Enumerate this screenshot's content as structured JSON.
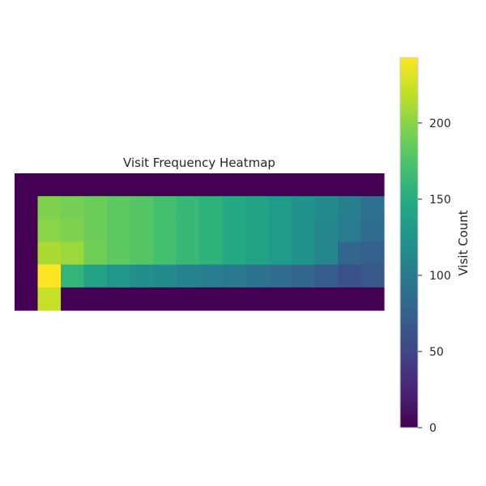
{
  "chart_data": {
    "type": "heatmap",
    "title": "Visit Frequency Heatmap",
    "xlabel": "",
    "ylabel": "",
    "colormap": "viridis",
    "color_range": [
      0,
      243
    ],
    "colorbar": {
      "label": "Visit Count",
      "ticks": [
        0,
        50,
        100,
        150,
        200
      ]
    },
    "grid": false,
    "values": [
      [
        0,
        0,
        0,
        0,
        0,
        0,
        0,
        0,
        0,
        0,
        0,
        0,
        0,
        0,
        0,
        0
      ],
      [
        0,
        196,
        192,
        188,
        182,
        178,
        170,
        162,
        155,
        147,
        140,
        132,
        124,
        116,
        104,
        90
      ],
      [
        0,
        200,
        196,
        188,
        182,
        178,
        170,
        162,
        155,
        147,
        140,
        132,
        124,
        112,
        100,
        86
      ],
      [
        0,
        212,
        206,
        190,
        182,
        178,
        170,
        162,
        155,
        147,
        140,
        132,
        124,
        112,
        80,
        74
      ],
      [
        0,
        243,
        158,
        138,
        128,
        120,
        116,
        108,
        102,
        98,
        92,
        86,
        80,
        70,
        60,
        66
      ],
      [
        0,
        222,
        0,
        0,
        0,
        0,
        0,
        0,
        0,
        0,
        0,
        0,
        0,
        0,
        0,
        0
      ]
    ]
  }
}
